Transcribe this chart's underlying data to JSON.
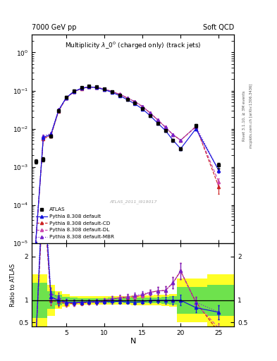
{
  "title_top_left": "7000 GeV pp",
  "title_top_right": "Soft QCD",
  "main_title": "Multiplicity $\\lambda\\_0^0$ (charged only) (track jets)",
  "watermark": "ATLAS_2011_I919017",
  "xlabel": "N",
  "ylabel_ratio": "Ratio to ATLAS",
  "right_label1": "Rivet 3.1.10, ≥ 3M events",
  "right_label2": "mcplots.cern.ch [arXiv:1306.3436]",
  "atlas_x": [
    1,
    2,
    3,
    4,
    5,
    6,
    7,
    8,
    9,
    10,
    11,
    12,
    13,
    14,
    15,
    16,
    17,
    18,
    19,
    20,
    22,
    25
  ],
  "atlas_y": [
    0.0014,
    0.0016,
    0.0065,
    0.03,
    0.068,
    0.1,
    0.12,
    0.13,
    0.125,
    0.11,
    0.092,
    0.076,
    0.06,
    0.047,
    0.034,
    0.022,
    0.014,
    0.009,
    0.005,
    0.003,
    0.012,
    0.0011
  ],
  "atlas_ye": [
    0.0002,
    0.0002,
    0.0006,
    0.0025,
    0.004,
    0.005,
    0.005,
    0.005,
    0.005,
    0.004,
    0.004,
    0.003,
    0.0025,
    0.002,
    0.0015,
    0.001,
    0.0008,
    0.0006,
    0.0004,
    0.0003,
    0.0012,
    0.0002
  ],
  "def_x": [
    1,
    2,
    3,
    4,
    5,
    6,
    7,
    8,
    9,
    10,
    11,
    12,
    13,
    14,
    15,
    16,
    17,
    18,
    19,
    20,
    22,
    25
  ],
  "def_y": [
    1e-05,
    0.006,
    0.007,
    0.03,
    0.065,
    0.095,
    0.115,
    0.125,
    0.12,
    0.106,
    0.09,
    0.074,
    0.058,
    0.045,
    0.033,
    0.022,
    0.014,
    0.009,
    0.005,
    0.003,
    0.01,
    0.0008
  ],
  "def_ye": [
    1e-06,
    0.0005,
    0.0005,
    0.002,
    0.003,
    0.004,
    0.004,
    0.004,
    0.004,
    0.003,
    0.003,
    0.003,
    0.002,
    0.002,
    0.001,
    0.0008,
    0.0006,
    0.0005,
    0.0003,
    0.0002,
    0.0008,
    0.0001
  ],
  "cd_x": [
    1,
    2,
    3,
    4,
    5,
    6,
    7,
    8,
    9,
    10,
    11,
    12,
    13,
    14,
    15,
    16,
    17,
    18,
    19,
    20,
    22,
    25
  ],
  "cd_y": [
    1e-05,
    0.0055,
    0.0065,
    0.029,
    0.063,
    0.093,
    0.113,
    0.124,
    0.12,
    0.109,
    0.095,
    0.08,
    0.064,
    0.051,
    0.038,
    0.026,
    0.017,
    0.011,
    0.007,
    0.005,
    0.0115,
    0.0003
  ],
  "cd_ye": [
    1e-06,
    0.0005,
    0.0005,
    0.002,
    0.003,
    0.004,
    0.004,
    0.004,
    0.004,
    0.003,
    0.003,
    0.003,
    0.002,
    0.002,
    0.001,
    0.0008,
    0.0006,
    0.0005,
    0.0003,
    0.0002,
    0.0008,
    0.0001
  ],
  "dl_x": [
    1,
    2,
    3,
    4,
    5,
    6,
    7,
    8,
    9,
    10,
    11,
    12,
    13,
    14,
    15,
    16,
    17,
    18,
    19,
    20,
    22,
    25
  ],
  "dl_y": [
    1e-05,
    0.0058,
    0.0068,
    0.03,
    0.064,
    0.094,
    0.114,
    0.125,
    0.121,
    0.11,
    0.095,
    0.081,
    0.065,
    0.051,
    0.038,
    0.026,
    0.017,
    0.011,
    0.007,
    0.005,
    0.0112,
    0.0004
  ],
  "dl_ye": [
    1e-06,
    0.0005,
    0.0005,
    0.002,
    0.003,
    0.004,
    0.004,
    0.004,
    0.004,
    0.003,
    0.003,
    0.003,
    0.002,
    0.002,
    0.001,
    0.0008,
    0.0006,
    0.0005,
    0.0003,
    0.0002,
    0.0008,
    0.0001
  ],
  "mbr_x": [
    1,
    2,
    3,
    4,
    5,
    6,
    7,
    8,
    9,
    10,
    11,
    12,
    13,
    14,
    15,
    16,
    17,
    18,
    19,
    20,
    22,
    25
  ],
  "mbr_y": [
    1e-05,
    0.0065,
    0.0075,
    0.032,
    0.065,
    0.095,
    0.115,
    0.126,
    0.122,
    0.11,
    0.095,
    0.08,
    0.065,
    0.052,
    0.039,
    0.026,
    0.017,
    0.011,
    0.007,
    0.005,
    0.0115,
    0.0008
  ],
  "mbr_ye": [
    1e-06,
    0.0005,
    0.0005,
    0.002,
    0.003,
    0.004,
    0.004,
    0.004,
    0.004,
    0.003,
    0.003,
    0.003,
    0.002,
    0.002,
    0.001,
    0.0008,
    0.0006,
    0.0005,
    0.0003,
    0.0002,
    0.0008,
    0.0001
  ],
  "color_atlas": "#000000",
  "color_def": "#1111dd",
  "color_cd": "#cc2222",
  "color_dl": "#cc44aa",
  "color_mbr": "#7722cc",
  "ylim_main": [
    1e-05,
    3.0
  ],
  "ylim_ratio": [
    0.4,
    2.3
  ],
  "xlim": [
    0.5,
    27
  ],
  "bin_edges": [
    0.5,
    1.5,
    2.5,
    3.5,
    4.5,
    5.5,
    6.5,
    7.5,
    8.5,
    9.5,
    10.5,
    11.5,
    12.5,
    13.5,
    14.5,
    15.5,
    16.5,
    17.5,
    18.5,
    19.5,
    21.0,
    23.5,
    27.0
  ],
  "yellow_rel": [
    0.6,
    0.6,
    0.35,
    0.2,
    0.14,
    0.1,
    0.09,
    0.09,
    0.09,
    0.09,
    0.1,
    0.09,
    0.1,
    0.11,
    0.11,
    0.11,
    0.12,
    0.13,
    0.15,
    0.5,
    0.5,
    0.6
  ],
  "green_rel": [
    0.4,
    0.4,
    0.2,
    0.12,
    0.08,
    0.06,
    0.05,
    0.05,
    0.05,
    0.05,
    0.06,
    0.05,
    0.06,
    0.06,
    0.06,
    0.06,
    0.07,
    0.08,
    0.09,
    0.3,
    0.3,
    0.35
  ],
  "bg_color": "#ffffff"
}
